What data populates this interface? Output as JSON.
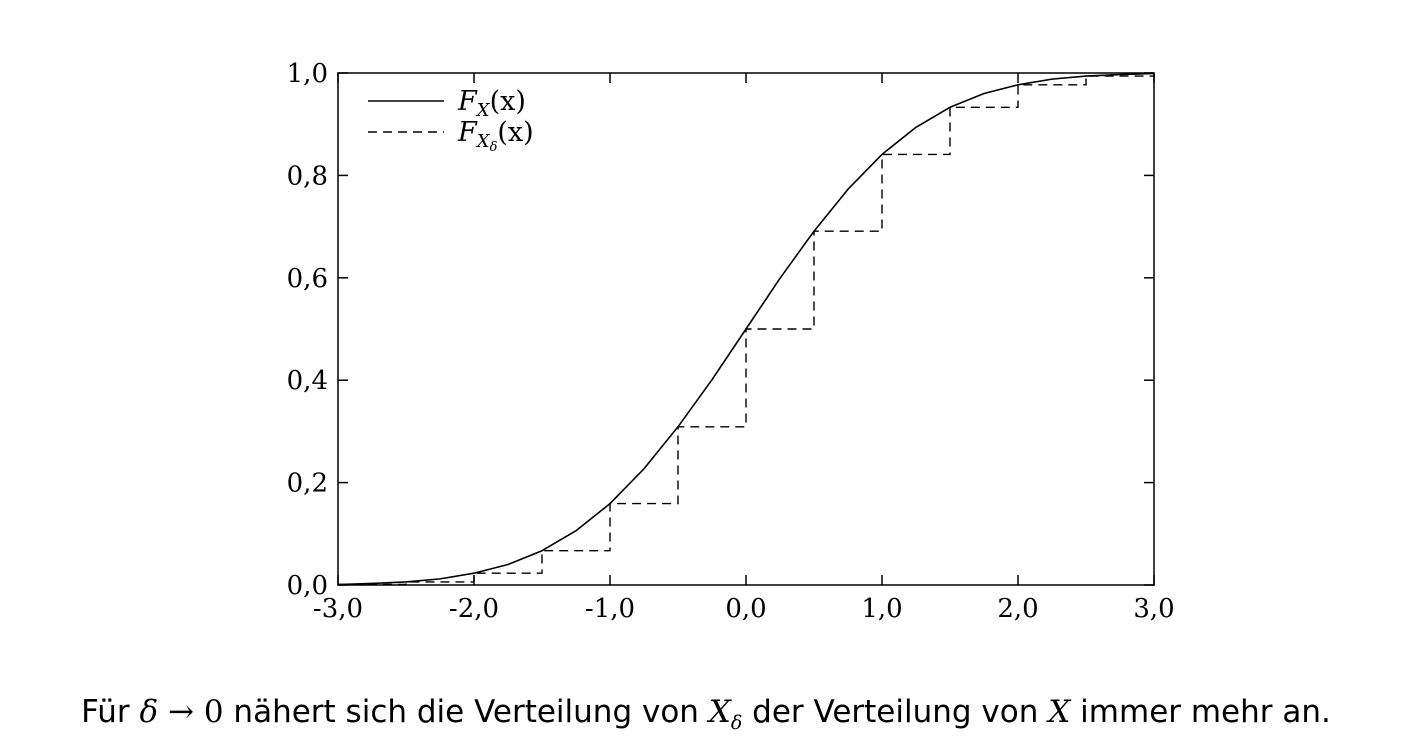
{
  "chart_data": {
    "type": "line",
    "xlim": [
      -3.0,
      3.0
    ],
    "ylim": [
      0.0,
      1.0
    ],
    "x_ticks": [
      "-3,0",
      "-2,0",
      "-1,0",
      "0,0",
      "1,0",
      "2,0",
      "3,0"
    ],
    "x_tick_values": [
      -3,
      -2,
      -1,
      0,
      1,
      2,
      3
    ],
    "y_ticks": [
      "0,0",
      "0,2",
      "0,4",
      "0,6",
      "0,8",
      "1,0"
    ],
    "y_tick_values": [
      0,
      0.2,
      0.4,
      0.6,
      0.8,
      1.0
    ],
    "grid": false,
    "legend_position": "top-left",
    "series": [
      {
        "name": "F_X(x)",
        "style": "solid",
        "x": [
          -3.0,
          -2.75,
          -2.5,
          -2.25,
          -2.0,
          -1.75,
          -1.5,
          -1.25,
          -1.0,
          -0.75,
          -0.5,
          -0.25,
          0.0,
          0.25,
          0.5,
          0.75,
          1.0,
          1.25,
          1.5,
          1.75,
          2.0,
          2.25,
          2.5,
          2.75,
          3.0
        ],
        "y": [
          0.001,
          0.003,
          0.006,
          0.012,
          0.023,
          0.04,
          0.067,
          0.106,
          0.159,
          0.227,
          0.309,
          0.401,
          0.5,
          0.599,
          0.691,
          0.773,
          0.841,
          0.894,
          0.933,
          0.96,
          0.977,
          0.988,
          0.994,
          0.997,
          0.999
        ]
      },
      {
        "name": "F_Xδ(x)",
        "style": "dashed-step",
        "x": [
          -3.0,
          -2.5,
          -2.0,
          -1.5,
          -1.0,
          -0.5,
          0.0,
          0.5,
          1.0,
          1.5,
          2.0,
          2.5,
          3.0
        ],
        "y": [
          0.001,
          0.006,
          0.023,
          0.067,
          0.159,
          0.309,
          0.5,
          0.691,
          0.841,
          0.933,
          0.977,
          0.994,
          0.999
        ]
      }
    ]
  },
  "legend": {
    "solid": {
      "main": "F",
      "sub": "X",
      "arg": "(x)"
    },
    "dashed": {
      "main": "F",
      "sub": "X",
      "subsub": "δ",
      "arg": "(x)"
    }
  },
  "caption": {
    "p1": "Für ",
    "delta": "δ",
    "arrow": " → 0",
    "p2": " nähert sich die Verteilung von ",
    "X": "X",
    "sub": "δ",
    "p3": " der Verteilung von ",
    "X2": "X",
    "p4": " immer mehr an."
  }
}
